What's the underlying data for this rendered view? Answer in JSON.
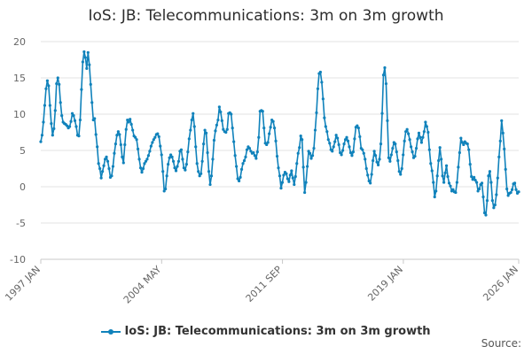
{
  "chart_data": {
    "type": "line",
    "title": "IoS: JB: Telecommunications: 3m on 3m growth",
    "source_label": "Source:",
    "xlabel": "",
    "ylabel": "",
    "ylim": [
      -10,
      20
    ],
    "y_ticks": [
      "20",
      "15",
      "10",
      "5",
      "0",
      "-5",
      "-10"
    ],
    "x_ticks": [
      "1997 JAN",
      "2004 MAY",
      "2011 SEP",
      "2019 JAN",
      "2026 JAN"
    ],
    "x_range": [
      "1997 JAN",
      "2026 JAN"
    ],
    "grid": true,
    "legend_position": "bottom",
    "series_color": "#1082bb",
    "series": [
      {
        "name": "IoS: JB: Telecommunications: 3m on 3m growth",
        "values": [
          6.2,
          7.1,
          8.9,
          11.2,
          13.5,
          14.6,
          13.9,
          11.2,
          8.7,
          7.1,
          8.0,
          10.5,
          14.2,
          15.0,
          14.1,
          11.6,
          9.8,
          8.9,
          8.7,
          8.6,
          8.4,
          8.1,
          8.3,
          9.0,
          10.1,
          9.8,
          9.1,
          8.3,
          7.1,
          7.0,
          9.2,
          13.4,
          17.2,
          18.6,
          17.8,
          16.3,
          18.5,
          16.8,
          14.1,
          11.6,
          9.2,
          9.4,
          7.2,
          5.5,
          3.2,
          2.5,
          1.2,
          2.1,
          2.9,
          3.8,
          4.1,
          3.5,
          2.5,
          1.3,
          1.5,
          2.8,
          4.6,
          5.9,
          7.1,
          7.6,
          7.2,
          5.8,
          4.1,
          3.3,
          5.8,
          7.9,
          9.2,
          8.9,
          9.3,
          8.6,
          7.8,
          7.0,
          6.8,
          6.5,
          5.2,
          3.8,
          2.6,
          2.0,
          2.5,
          3.2,
          3.5,
          3.8,
          4.3,
          4.9,
          5.6,
          6.1,
          6.5,
          6.8,
          7.2,
          7.3,
          6.9,
          5.6,
          4.4,
          2.1,
          -0.6,
          -0.3,
          1.5,
          3.1,
          4.0,
          4.4,
          4.1,
          3.5,
          2.6,
          2.2,
          2.8,
          3.5,
          4.9,
          5.1,
          3.8,
          2.6,
          2.3,
          3.1,
          4.8,
          6.6,
          7.8,
          9.2,
          10.1,
          8.3,
          5.5,
          3.2,
          2.1,
          1.5,
          1.8,
          3.5,
          5.9,
          7.8,
          7.4,
          4.7,
          2.1,
          0.3,
          1.5,
          3.8,
          6.4,
          7.7,
          8.5,
          9.2,
          11.0,
          10.3,
          9.1,
          7.9,
          7.6,
          7.5,
          7.9,
          10.1,
          10.2,
          10.0,
          8.1,
          6.2,
          4.3,
          2.8,
          1.1,
          0.8,
          1.3,
          2.4,
          3.2,
          3.6,
          4.1,
          5.1,
          5.5,
          5.3,
          4.9,
          4.6,
          4.7,
          4.3,
          3.9,
          4.8,
          6.8,
          10.4,
          10.5,
          10.4,
          8.1,
          6.0,
          5.8,
          6.1,
          7.3,
          8.2,
          9.2,
          9.0,
          8.1,
          6.3,
          4.2,
          2.6,
          1.5,
          -0.2,
          0.6,
          1.6,
          2.0,
          1.8,
          1.1,
          0.7,
          1.6,
          2.2,
          1.2,
          0.3,
          1.4,
          3.2,
          4.6,
          5.4,
          7.0,
          6.5,
          2.7,
          -0.8,
          0.6,
          2.8,
          4.9,
          4.6,
          3.9,
          4.3,
          5.3,
          7.8,
          10.2,
          13.5,
          15.6,
          15.8,
          14.4,
          12.1,
          9.5,
          8.3,
          7.6,
          6.5,
          6.0,
          5.1,
          4.9,
          5.5,
          6.2,
          7.1,
          6.7,
          5.8,
          4.7,
          4.4,
          5.0,
          5.9,
          6.5,
          6.8,
          6.3,
          5.5,
          4.7,
          4.3,
          4.8,
          6.6,
          8.2,
          8.4,
          8.1,
          6.9,
          5.3,
          5.1,
          4.6,
          3.8,
          2.5,
          1.6,
          0.8,
          0.5,
          1.7,
          3.6,
          4.9,
          4.3,
          3.4,
          3.0,
          3.8,
          5.9,
          10.1,
          15.4,
          16.4,
          14.2,
          9.1,
          4.0,
          3.5,
          4.4,
          5.3,
          6.1,
          5.9,
          4.8,
          3.6,
          2.1,
          1.7,
          2.5,
          4.4,
          6.3,
          7.6,
          7.9,
          7.3,
          6.5,
          5.5,
          4.8,
          4.0,
          4.2,
          5.3,
          6.6,
          7.4,
          6.8,
          6.1,
          6.8,
          7.6,
          8.9,
          8.3,
          7.5,
          5.1,
          3.2,
          2.2,
          0.6,
          -1.4,
          -0.6,
          1.5,
          3.6,
          5.4,
          3.8,
          1.5,
          0.6,
          1.9,
          2.9,
          1.4,
          0.5,
          0.1,
          -0.6,
          -0.4,
          -0.7,
          -0.8,
          0.6,
          2.7,
          4.7,
          6.7,
          6.1,
          5.8,
          6.2,
          6.0,
          5.9,
          5.1,
          3.1,
          1.4,
          1.0,
          1.3,
          0.9,
          0.6,
          -0.6,
          -0.3,
          0.3,
          0.5,
          -1.4,
          -3.6,
          -3.9,
          -1.9,
          1.5,
          2.1,
          0.6,
          -1.9,
          -2.9,
          -2.5,
          -1.1,
          1.2,
          4.1,
          6.3,
          9.1,
          7.4,
          5.2,
          2.4,
          -0.3,
          -1.2,
          -0.9,
          -0.8,
          -0.4,
          0.4,
          0.5,
          -0.4,
          -0.9,
          -0.7
        ]
      }
    ]
  }
}
